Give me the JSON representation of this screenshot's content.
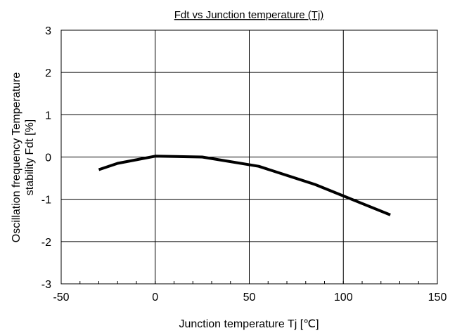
{
  "chart_data": {
    "type": "line",
    "title": "Fdt vs Junction temperature (Tj)",
    "xlabel": "Junction temperature Tj [℃]",
    "ylabel_line1": "Oscillation frequency Temperature",
    "ylabel_line2": "stability  Fdt [%]",
    "xlim": [
      -50,
      150
    ],
    "ylim": [
      -3,
      3
    ],
    "xticks": [
      -50,
      0,
      50,
      100,
      150
    ],
    "yticks": [
      -3,
      -2,
      -1,
      0,
      1,
      2,
      3
    ],
    "grid": true,
    "series": [
      {
        "x": [
          -30,
          -20,
          0,
          25,
          55,
          85,
          100,
          125
        ],
        "y": [
          -0.3,
          -0.15,
          0.02,
          0.0,
          -0.22,
          -0.65,
          -0.92,
          -1.37
        ]
      }
    ]
  }
}
